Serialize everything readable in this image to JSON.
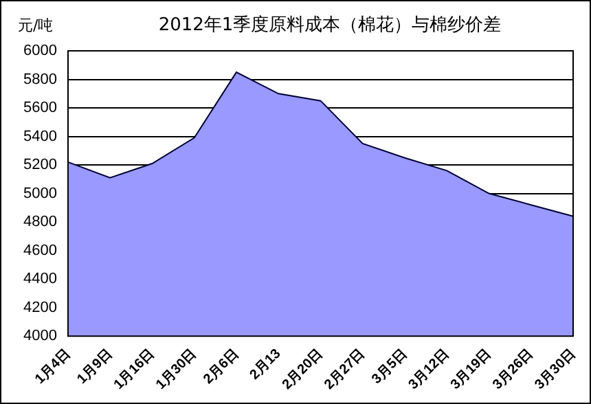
{
  "chart_data": {
    "type": "area",
    "title": "2012年1季度原料成本（棉花）与棉纱价差",
    "ylabel": "元/吨",
    "categories": [
      "1月4日",
      "1月9日",
      "1月16日",
      "1月30日",
      "2月6日",
      "2月13",
      "2月20日",
      "2月27日",
      "3月5日",
      "3月12日",
      "3月19日",
      "3月26日",
      "3月30日"
    ],
    "values": [
      5220,
      5110,
      5210,
      5390,
      5850,
      5700,
      5650,
      5350,
      5250,
      5160,
      5000,
      4920,
      4840
    ],
    "color": "#9999ff",
    "ylim": [
      4000,
      6000
    ],
    "yticks": [
      4000,
      4200,
      4400,
      4600,
      4800,
      5000,
      5200,
      5400,
      5600,
      5800,
      6000
    ],
    "grid": "y",
    "legend": false
  }
}
